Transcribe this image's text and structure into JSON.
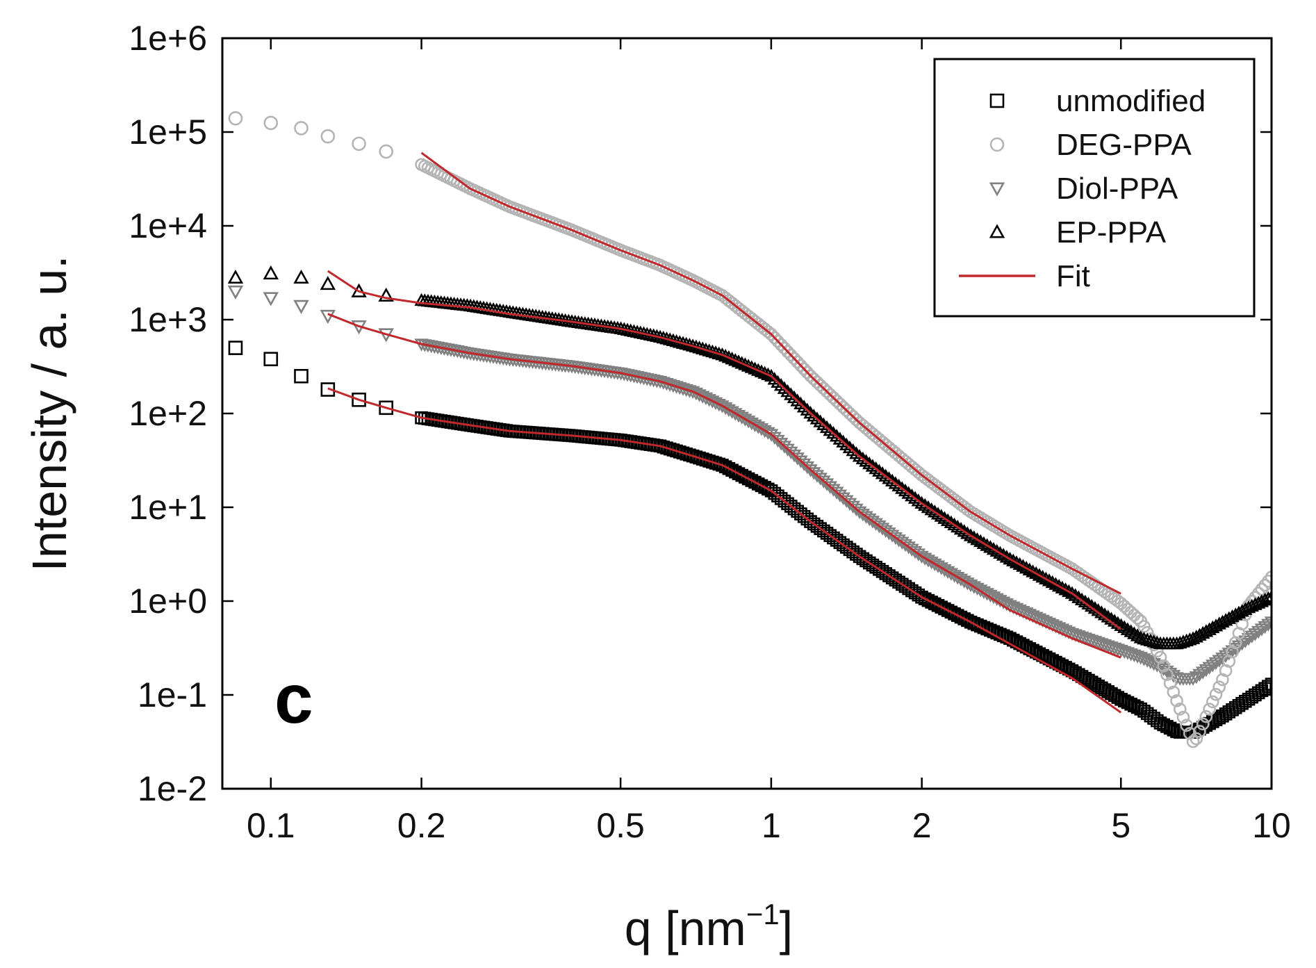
{
  "chart_data": {
    "type": "scatter",
    "title": "",
    "panel_label": "c",
    "xlabel": "q [nm",
    "xlabel_sup": "−1",
    "xlabel_close": "]",
    "ylabel": "Intensity / a. u.",
    "xscale": "log",
    "yscale": "log",
    "xlim": [
      0.08,
      10
    ],
    "ylim": [
      0.01,
      1000000
    ],
    "x_ticks": [
      0.1,
      0.2,
      0.5,
      1,
      2,
      5,
      10
    ],
    "x_tick_labels": [
      "0.1",
      "0.2",
      "0.5",
      "1",
      "2",
      "5",
      "10"
    ],
    "y_ticks": [
      0.01,
      0.1,
      1,
      10,
      100,
      1000,
      10000,
      100000,
      1000000
    ],
    "y_tick_labels": [
      "1e-2",
      "1e-1",
      "1e+0",
      "1e+1",
      "1e+2",
      "1e+3",
      "1e+4",
      "1e+5",
      "1e+6"
    ],
    "legend_position": "top-right",
    "series": [
      {
        "name": "unmodified",
        "marker": "square",
        "color": "#000000",
        "x": [
          0.085,
          0.1,
          0.115,
          0.13,
          0.15,
          0.17,
          0.2,
          0.25,
          0.3,
          0.4,
          0.5,
          0.6,
          0.7,
          0.8,
          1.0,
          1.2,
          1.5,
          2.0,
          2.5,
          3.0,
          4.0,
          5.0,
          5.5,
          6.0,
          6.5,
          7.0,
          8.0,
          9.0,
          10.0
        ],
        "y": [
          500,
          380,
          250,
          180,
          140,
          115,
          90,
          75,
          65,
          58,
          52,
          45,
          35,
          28,
          15,
          7,
          3,
          1.1,
          0.6,
          0.4,
          0.18,
          0.09,
          0.07,
          0.05,
          0.04,
          0.04,
          0.06,
          0.09,
          0.13
        ]
      },
      {
        "name": "DEG-PPA",
        "marker": "circle",
        "color": "#b4b4b4",
        "x": [
          0.085,
          0.1,
          0.115,
          0.13,
          0.15,
          0.17,
          0.2,
          0.25,
          0.3,
          0.4,
          0.5,
          0.6,
          0.7,
          0.8,
          1.0,
          1.2,
          1.5,
          2.0,
          2.5,
          3.0,
          4.0,
          5.0,
          5.5,
          6.0,
          6.5,
          7.0,
          8.0,
          9.0,
          10.0
        ],
        "y": [
          140000,
          125000,
          110000,
          90000,
          75000,
          62000,
          45000,
          25000,
          16000,
          9000,
          5500,
          3800,
          2600,
          1800,
          700,
          250,
          80,
          22,
          9,
          5,
          2.2,
          0.95,
          0.6,
          0.25,
          0.08,
          0.03,
          0.15,
          0.9,
          1.8
        ]
      },
      {
        "name": "Diol-PPA",
        "marker": "triangle-down",
        "color": "#808080",
        "x": [
          0.085,
          0.1,
          0.115,
          0.13,
          0.15,
          0.17,
          0.2,
          0.25,
          0.3,
          0.4,
          0.5,
          0.6,
          0.7,
          0.8,
          1.0,
          1.2,
          1.5,
          2.0,
          2.5,
          3.0,
          4.0,
          5.0,
          5.5,
          6.0,
          6.5,
          7.0,
          8.0,
          9.0,
          10.0
        ],
        "y": [
          2000,
          1700,
          1400,
          1100,
          850,
          700,
          550,
          440,
          380,
          320,
          270,
          220,
          170,
          120,
          60,
          25,
          9,
          3,
          1.5,
          0.9,
          0.45,
          0.3,
          0.25,
          0.2,
          0.15,
          0.15,
          0.25,
          0.4,
          0.6
        ]
      },
      {
        "name": "EP-PPA",
        "marker": "triangle-up",
        "color": "#000000",
        "x": [
          0.085,
          0.1,
          0.115,
          0.13,
          0.15,
          0.17,
          0.2,
          0.25,
          0.3,
          0.4,
          0.5,
          0.6,
          0.7,
          0.8,
          1.0,
          1.2,
          1.5,
          2.0,
          2.5,
          3.0,
          4.0,
          5.0,
          5.5,
          6.0,
          6.5,
          7.0,
          8.0,
          9.0,
          10.0
        ],
        "y": [
          2800,
          3100,
          2800,
          2400,
          2000,
          1800,
          1600,
          1400,
          1200,
          950,
          800,
          650,
          520,
          420,
          250,
          100,
          35,
          11,
          5,
          2.8,
          1.2,
          0.55,
          0.4,
          0.35,
          0.35,
          0.4,
          0.6,
          0.85,
          1.1
        ]
      },
      {
        "name": "Fit",
        "marker": "line",
        "color": "#c0282c",
        "segments": [
          {
            "x": [
              0.2,
              0.25,
              0.3,
              0.4,
              0.5,
              0.6,
              0.7,
              0.8,
              1.0,
              1.2,
              1.5,
              2.0,
              2.5,
              3.0,
              4.0,
              5.0
            ],
            "y": [
              60000,
              25000,
              16000,
              9000,
              5500,
              3800,
              2600,
              1800,
              700,
              250,
              80,
              22,
              9,
              5,
              2.2,
              1.2
            ]
          },
          {
            "x": [
              0.13,
              0.15,
              0.17,
              0.2,
              0.25,
              0.3,
              0.4,
              0.5,
              0.6,
              0.7,
              0.8,
              1.0,
              1.2,
              1.5,
              2.0,
              2.5,
              3.0,
              4.0,
              5.0
            ],
            "y": [
              3300,
              2000,
              1700,
              1500,
              1350,
              1150,
              950,
              800,
              650,
              520,
              420,
              250,
              100,
              35,
              11,
              5,
              2.8,
              1.2,
              0.5
            ]
          },
          {
            "x": [
              0.13,
              0.15,
              0.17,
              0.2,
              0.25,
              0.3,
              0.4,
              0.5,
              0.6,
              0.7,
              0.8,
              1.0,
              1.2,
              1.5,
              2.0,
              2.5,
              3.0,
              4.0,
              5.0
            ],
            "y": [
              1150,
              850,
              700,
              550,
              440,
              380,
              320,
              270,
              220,
              170,
              120,
              60,
              25,
              9,
              3,
              1.5,
              0.8,
              0.4,
              0.25
            ]
          },
          {
            "x": [
              0.13,
              0.15,
              0.17,
              0.2,
              0.25,
              0.3,
              0.4,
              0.5,
              0.6,
              0.7,
              0.8,
              1.0,
              1.2,
              1.5,
              2.0,
              2.5,
              3.0,
              4.0,
              5.0
            ],
            "y": [
              185,
              140,
              115,
              90,
              75,
              65,
              58,
              52,
              45,
              35,
              28,
              15,
              7,
              3,
              1.1,
              0.6,
              0.35,
              0.15,
              0.065
            ]
          }
        ]
      }
    ]
  }
}
